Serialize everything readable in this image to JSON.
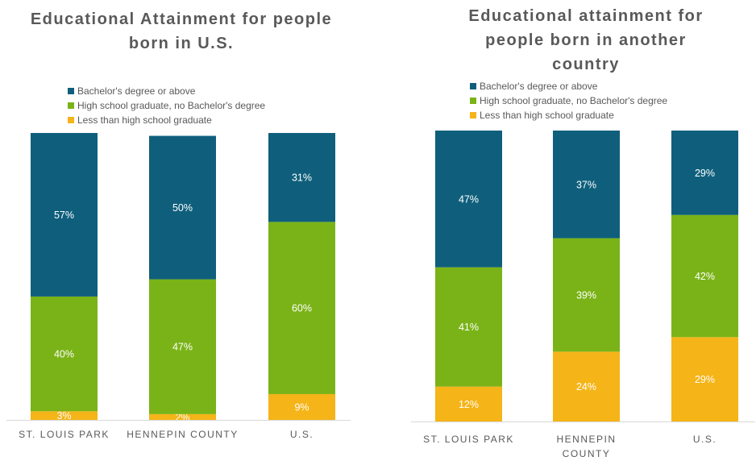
{
  "chart_data": [
    {
      "type": "bar",
      "stacked": true,
      "title": "Educational Attainment for people born in U.S.",
      "categories": [
        "ST. LOUIS PARK",
        "HENNEPIN COUNTY",
        "U.S."
      ],
      "series": [
        {
          "name": "Less than high school graduate",
          "color": "#f5b418",
          "values": [
            3,
            2,
            9
          ],
          "labels": [
            "3%",
            "2%",
            "9%"
          ]
        },
        {
          "name": "High school graduate, no Bachelor's degree",
          "color": "#7ab317",
          "values": [
            40,
            47,
            60
          ],
          "labels": [
            "40%",
            "47%",
            "60%"
          ]
        },
        {
          "name": "Bachelor's degree or above",
          "color": "#0f5f7c",
          "values": [
            57,
            50,
            31
          ],
          "labels": [
            "57%",
            "50%",
            "31%"
          ]
        }
      ],
      "legend_order": [
        2,
        1,
        0
      ],
      "legend": "top-left",
      "ylim": [
        0,
        100
      ],
      "grid": false
    },
    {
      "type": "bar",
      "stacked": true,
      "title": "Educational attainment for people born in another country",
      "categories": [
        "ST. LOUIS PARK",
        "HENNEPIN COUNTY",
        "U.S."
      ],
      "series": [
        {
          "name": "Less than high school graduate",
          "color": "#f5b418",
          "values": [
            12,
            24,
            29
          ],
          "labels": [
            "12%",
            "24%",
            "29%"
          ]
        },
        {
          "name": "High school graduate, no Bachelor's degree",
          "color": "#7ab317",
          "values": [
            41,
            39,
            42
          ],
          "labels": [
            "41%",
            "39%",
            "42%"
          ]
        },
        {
          "name": "Bachelor's degree or above",
          "color": "#0f5f7c",
          "values": [
            47,
            37,
            29
          ],
          "labels": [
            "47%",
            "37%",
            "29%"
          ]
        }
      ],
      "legend_order": [
        2,
        1,
        0
      ],
      "legend": "top-left",
      "ylim": [
        0,
        100
      ],
      "grid": false
    }
  ]
}
